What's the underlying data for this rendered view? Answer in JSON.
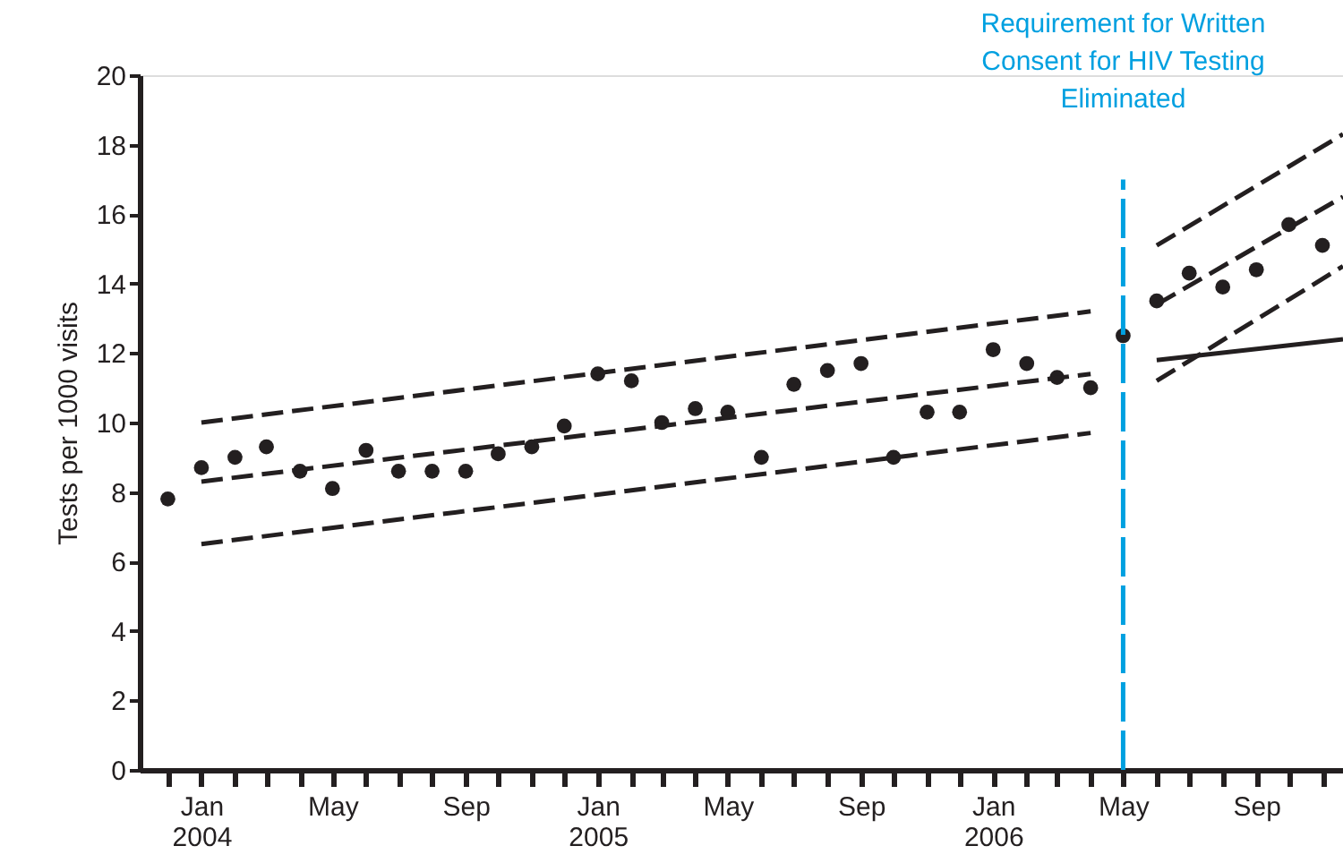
{
  "chart_data": {
    "type": "scatter",
    "ylabel": "Tests per 1000 visits",
    "xlim": [
      "2003-11-05",
      "2006-11-20"
    ],
    "ylim": [
      0,
      20
    ],
    "yticks": [
      0,
      2,
      4,
      6,
      8,
      10,
      12,
      14,
      16,
      18,
      20
    ],
    "xticks": [
      {
        "value": "2003-12",
        "label": null
      },
      {
        "value": "2004-01",
        "label": "Jan 2004"
      },
      {
        "value": "2004-02",
        "label": null
      },
      {
        "value": "2004-03",
        "label": null
      },
      {
        "value": "2004-04",
        "label": null
      },
      {
        "value": "2004-05",
        "label": "May"
      },
      {
        "value": "2004-06",
        "label": null
      },
      {
        "value": "2004-07",
        "label": null
      },
      {
        "value": "2004-08",
        "label": null
      },
      {
        "value": "2004-09",
        "label": "Sep"
      },
      {
        "value": "2004-10",
        "label": null
      },
      {
        "value": "2004-11",
        "label": null
      },
      {
        "value": "2004-12",
        "label": null
      },
      {
        "value": "2005-01",
        "label": "Jan 2005"
      },
      {
        "value": "2005-02",
        "label": null
      },
      {
        "value": "2005-03",
        "label": null
      },
      {
        "value": "2005-04",
        "label": null
      },
      {
        "value": "2005-05",
        "label": "May"
      },
      {
        "value": "2005-06",
        "label": null
      },
      {
        "value": "2005-07",
        "label": null
      },
      {
        "value": "2005-08",
        "label": null
      },
      {
        "value": "2005-09",
        "label": "Sep"
      },
      {
        "value": "2005-10",
        "label": null
      },
      {
        "value": "2005-11",
        "label": null
      },
      {
        "value": "2005-12",
        "label": null
      },
      {
        "value": "2006-01",
        "label": "Jan 2006"
      },
      {
        "value": "2006-02",
        "label": null
      },
      {
        "value": "2006-03",
        "label": null
      },
      {
        "value": "2006-04",
        "label": null
      },
      {
        "value": "2006-05",
        "label": "May"
      },
      {
        "value": "2006-06",
        "label": null
      },
      {
        "value": "2006-07",
        "label": null
      },
      {
        "value": "2006-08",
        "label": null
      },
      {
        "value": "2006-09",
        "label": "Sep"
      },
      {
        "value": "2006-10",
        "label": null
      },
      {
        "value": "2006-11",
        "label": null
      }
    ],
    "x": [
      "2003-12",
      "2004-01",
      "2004-02",
      "2004-03",
      "2004-04",
      "2004-05",
      "2004-06",
      "2004-07",
      "2004-08",
      "2004-09",
      "2004-10",
      "2004-11",
      "2004-12",
      "2005-01",
      "2005-02",
      "2005-03",
      "2005-04",
      "2005-05",
      "2005-06",
      "2005-07",
      "2005-08",
      "2005-09",
      "2005-10",
      "2005-11",
      "2005-12",
      "2006-01",
      "2006-02",
      "2006-03",
      "2006-04",
      "2006-05",
      "2006-06",
      "2006-07",
      "2006-08",
      "2006-09",
      "2006-10",
      "2006-11"
    ],
    "series": [
      {
        "color": "#231f20",
        "marker": "circle",
        "values": [
          7.8,
          8.7,
          9.0,
          9.3,
          8.6,
          8.1,
          9.2,
          8.6,
          8.6,
          8.6,
          9.1,
          9.3,
          9.9,
          11.4,
          11.2,
          10.0,
          10.4,
          10.3,
          9.0,
          11.1,
          11.5,
          11.7,
          9.0,
          10.3,
          10.3,
          12.1,
          11.7,
          11.3,
          11.0,
          12.5,
          13.5,
          14.3,
          13.9,
          14.4,
          15.7,
          15.1
        ]
      },
      {
        "type": "line",
        "color": "#231f20",
        "line_style": "dashed",
        "x": [
          "2004-01",
          "2006-04"
        ],
        "values": [
          10.0,
          13.2
        ]
      },
      {
        "type": "line",
        "color": "#231f20",
        "line_style": "dashed",
        "x": [
          "2004-01",
          "2006-04"
        ],
        "values": [
          8.3,
          11.4
        ]
      },
      {
        "type": "line",
        "color": "#231f20",
        "line_style": "dashed",
        "x": [
          "2004-01",
          "2006-04"
        ],
        "values": [
          6.5,
          9.7
        ]
      },
      {
        "type": "line",
        "color": "#231f20",
        "line_style": "dashed",
        "x": [
          "2006-06",
          "2006-11-20"
        ],
        "values": [
          15.1,
          18.3
        ]
      },
      {
        "type": "line",
        "color": "#231f20",
        "line_style": "dashed",
        "x": [
          "2006-06",
          "2006-11-20"
        ],
        "values": [
          13.4,
          16.5
        ]
      },
      {
        "type": "line",
        "color": "#231f20",
        "line_style": "dashed",
        "x": [
          "2006-06",
          "2006-11-20"
        ],
        "values": [
          11.2,
          14.5
        ]
      },
      {
        "type": "line",
        "color": "#231f20",
        "line_style": "solid",
        "x": [
          "2006-06",
          "2006-11-20"
        ],
        "values": [
          11.8,
          12.4
        ]
      }
    ],
    "ref_lines": [
      {
        "axis": "x",
        "value": "2006-05",
        "label": "Requirement for Written Consent for HIV Testing Eliminated",
        "color": "#00a0e0",
        "line_style": "dashed"
      }
    ],
    "grid": false
  }
}
